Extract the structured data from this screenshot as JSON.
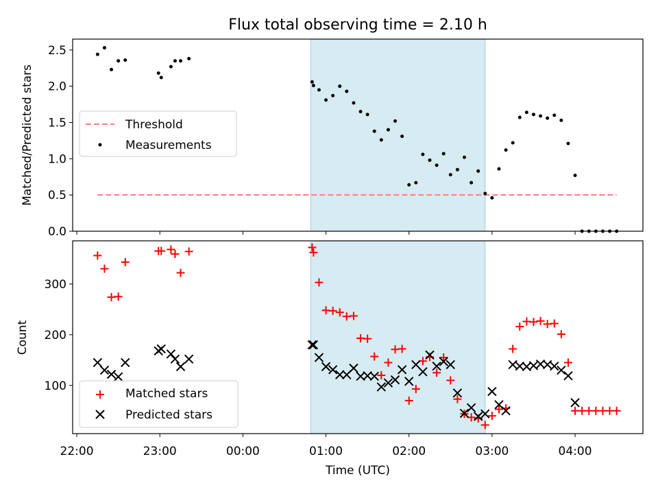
{
  "chart_data": {
    "title": "Flux total observing time = 2.10 h",
    "xlabel": "Time (UTC)",
    "x_ticks": [
      "22:00",
      "23:00",
      "00:00",
      "01:00",
      "02:00",
      "03:00",
      "04:00"
    ],
    "x_range": [
      "21:57",
      "04:49"
    ],
    "shaded_interval": [
      "00:49",
      "02:55"
    ],
    "panels": [
      {
        "type": "scatter",
        "ylabel": "Matched/Predicted stars",
        "ylim": [
          0,
          2.65
        ],
        "y_ticks": [
          "0.0",
          "0.5",
          "1.0",
          "1.5",
          "2.0",
          "2.5"
        ],
        "legend": {
          "position": "center-left",
          "entries": [
            "Threshold",
            "Measurements"
          ]
        },
        "series": [
          {
            "name": "Threshold",
            "style": "dashed-line",
            "color": "#ff7b7b",
            "points": [
              [
                "22:15",
                0.5
              ],
              [
                "04:30",
                0.5
              ]
            ]
          },
          {
            "name": "Measurements",
            "style": "dot",
            "color": "#000000",
            "points": [
              [
                "22:15",
                2.44
              ],
              [
                "22:20",
                2.53
              ],
              [
                "22:25",
                2.23
              ],
              [
                "22:30",
                2.35
              ],
              [
                "22:35",
                2.36
              ],
              [
                "22:59",
                2.18
              ],
              [
                "23:01",
                2.12
              ],
              [
                "23:08",
                2.27
              ],
              [
                "23:11",
                2.35
              ],
              [
                "23:15",
                2.35
              ],
              [
                "23:21",
                2.38
              ],
              [
                "00:50",
                2.06
              ],
              [
                "00:51",
                2.01
              ],
              [
                "00:55",
                1.95
              ],
              [
                "01:00",
                1.81
              ],
              [
                "01:05",
                1.87
              ],
              [
                "01:10",
                2.0
              ],
              [
                "01:15",
                1.93
              ],
              [
                "01:20",
                1.77
              ],
              [
                "01:25",
                1.65
              ],
              [
                "01:30",
                1.61
              ],
              [
                "01:35",
                1.38
              ],
              [
                "01:40",
                1.26
              ],
              [
                "01:45",
                1.4
              ],
              [
                "01:50",
                1.52
              ],
              [
                "01:55",
                1.31
              ],
              [
                "02:00",
                0.64
              ],
              [
                "02:05",
                0.67
              ],
              [
                "02:10",
                1.06
              ],
              [
                "02:15",
                0.98
              ],
              [
                "02:20",
                0.91
              ],
              [
                "02:25",
                1.07
              ],
              [
                "02:30",
                0.78
              ],
              [
                "02:35",
                0.85
              ],
              [
                "02:40",
                1.02
              ],
              [
                "02:45",
                0.67
              ],
              [
                "02:50",
                0.83
              ],
              [
                "02:55",
                0.52
              ],
              [
                "03:00",
                0.46
              ],
              [
                "03:05",
                0.86
              ],
              [
                "03:10",
                1.12
              ],
              [
                "03:15",
                1.22
              ],
              [
                "03:20",
                1.57
              ],
              [
                "03:25",
                1.64
              ],
              [
                "03:30",
                1.61
              ],
              [
                "03:35",
                1.59
              ],
              [
                "03:40",
                1.56
              ],
              [
                "03:45",
                1.6
              ],
              [
                "03:50",
                1.53
              ],
              [
                "03:55",
                1.21
              ],
              [
                "04:00",
                0.77
              ],
              [
                "04:05",
                0.0
              ],
              [
                "04:10",
                0.0
              ],
              [
                "04:15",
                0.0
              ],
              [
                "04:20",
                0.0
              ],
              [
                "04:25",
                0.0
              ],
              [
                "04:30",
                0.0
              ]
            ]
          }
        ]
      },
      {
        "type": "scatter",
        "ylabel": "Count",
        "ylim": [
          5,
          385
        ],
        "y_ticks": [
          "100",
          "200",
          "300"
        ],
        "legend": {
          "position": "bottom-left",
          "entries": [
            "Matched stars",
            "Predicted stars"
          ]
        },
        "series": [
          {
            "name": "Matched stars",
            "style": "plus",
            "color": "#ff0000",
            "points": [
              [
                "22:15",
                356
              ],
              [
                "22:20",
                330
              ],
              [
                "22:25",
                274
              ],
              [
                "22:30",
                275
              ],
              [
                "22:35",
                343
              ],
              [
                "22:59",
                365
              ],
              [
                "23:01",
                365
              ],
              [
                "23:08",
                368
              ],
              [
                "23:11",
                359
              ],
              [
                "23:15",
                322
              ],
              [
                "23:21",
                364
              ],
              [
                "00:50",
                372
              ],
              [
                "00:51",
                362
              ],
              [
                "00:55",
                303
              ],
              [
                "01:00",
                248
              ],
              [
                "01:05",
                247
              ],
              [
                "01:10",
                244
              ],
              [
                "01:15",
                236
              ],
              [
                "01:20",
                237
              ],
              [
                "01:25",
                193
              ],
              [
                "01:30",
                192
              ],
              [
                "01:35",
                157
              ],
              [
                "01:40",
                120
              ],
              [
                "01:45",
                145
              ],
              [
                "01:50",
                171
              ],
              [
                "01:55",
                172
              ],
              [
                "02:00",
                70
              ],
              [
                "02:05",
                93
              ],
              [
                "02:10",
                148
              ],
              [
                "02:15",
                156
              ],
              [
                "02:20",
                125
              ],
              [
                "02:25",
                155
              ],
              [
                "02:30",
                110
              ],
              [
                "02:35",
                73
              ],
              [
                "02:40",
                44
              ],
              [
                "02:45",
                37
              ],
              [
                "02:50",
                35
              ],
              [
                "02:55",
                22
              ],
              [
                "03:00",
                40
              ],
              [
                "03:05",
                53
              ],
              [
                "03:10",
                55
              ],
              [
                "03:15",
                172
              ],
              [
                "03:20",
                216
              ],
              [
                "03:25",
                226
              ],
              [
                "03:30",
                225
              ],
              [
                "03:35",
                227
              ],
              [
                "03:40",
                221
              ],
              [
                "03:45",
                222
              ],
              [
                "03:50",
                201
              ],
              [
                "03:55",
                145
              ],
              [
                "04:00",
                50
              ],
              [
                "04:05",
                50
              ],
              [
                "04:10",
                50
              ],
              [
                "04:15",
                50
              ],
              [
                "04:20",
                50
              ],
              [
                "04:25",
                50
              ],
              [
                "04:30",
                50
              ]
            ]
          },
          {
            "name": "Predicted stars",
            "style": "x",
            "color": "#000000",
            "points": [
              [
                "22:15",
                145
              ],
              [
                "22:20",
                130
              ],
              [
                "22:25",
                122
              ],
              [
                "22:30",
                117
              ],
              [
                "22:35",
                145
              ],
              [
                "22:59",
                168
              ],
              [
                "23:01",
                172
              ],
              [
                "23:08",
                162
              ],
              [
                "23:11",
                152
              ],
              [
                "23:15",
                137
              ],
              [
                "23:21",
                152
              ],
              [
                "00:50",
                180
              ],
              [
                "00:51",
                180
              ],
              [
                "00:55",
                155
              ],
              [
                "01:00",
                137
              ],
              [
                "01:05",
                131
              ],
              [
                "01:10",
                121
              ],
              [
                "01:15",
                121
              ],
              [
                "01:20",
                134
              ],
              [
                "01:25",
                118
              ],
              [
                "01:30",
                119
              ],
              [
                "01:35",
                118
              ],
              [
                "01:40",
                97
              ],
              [
                "01:45",
                105
              ],
              [
                "01:50",
                111
              ],
              [
                "01:55",
                131
              ],
              [
                "02:00",
                108
              ],
              [
                "02:05",
                141
              ],
              [
                "02:10",
                127
              ],
              [
                "02:15",
                160
              ],
              [
                "02:20",
                138
              ],
              [
                "02:25",
                147
              ],
              [
                "02:30",
                141
              ],
              [
                "02:35",
                85
              ],
              [
                "02:40",
                45
              ],
              [
                "02:45",
                56
              ],
              [
                "02:50",
                39
              ],
              [
                "02:55",
                44
              ],
              [
                "03:00",
                88
              ],
              [
                "03:05",
                62
              ],
              [
                "03:10",
                50
              ],
              [
                "03:15",
                141
              ],
              [
                "03:20",
                138
              ],
              [
                "03:25",
                137
              ],
              [
                "03:30",
                139
              ],
              [
                "03:35",
                142
              ],
              [
                "03:40",
                141
              ],
              [
                "03:45",
                138
              ],
              [
                "03:50",
                130
              ],
              [
                "03:55",
                119
              ],
              [
                "04:00",
                66
              ]
            ]
          }
        ]
      }
    ]
  }
}
